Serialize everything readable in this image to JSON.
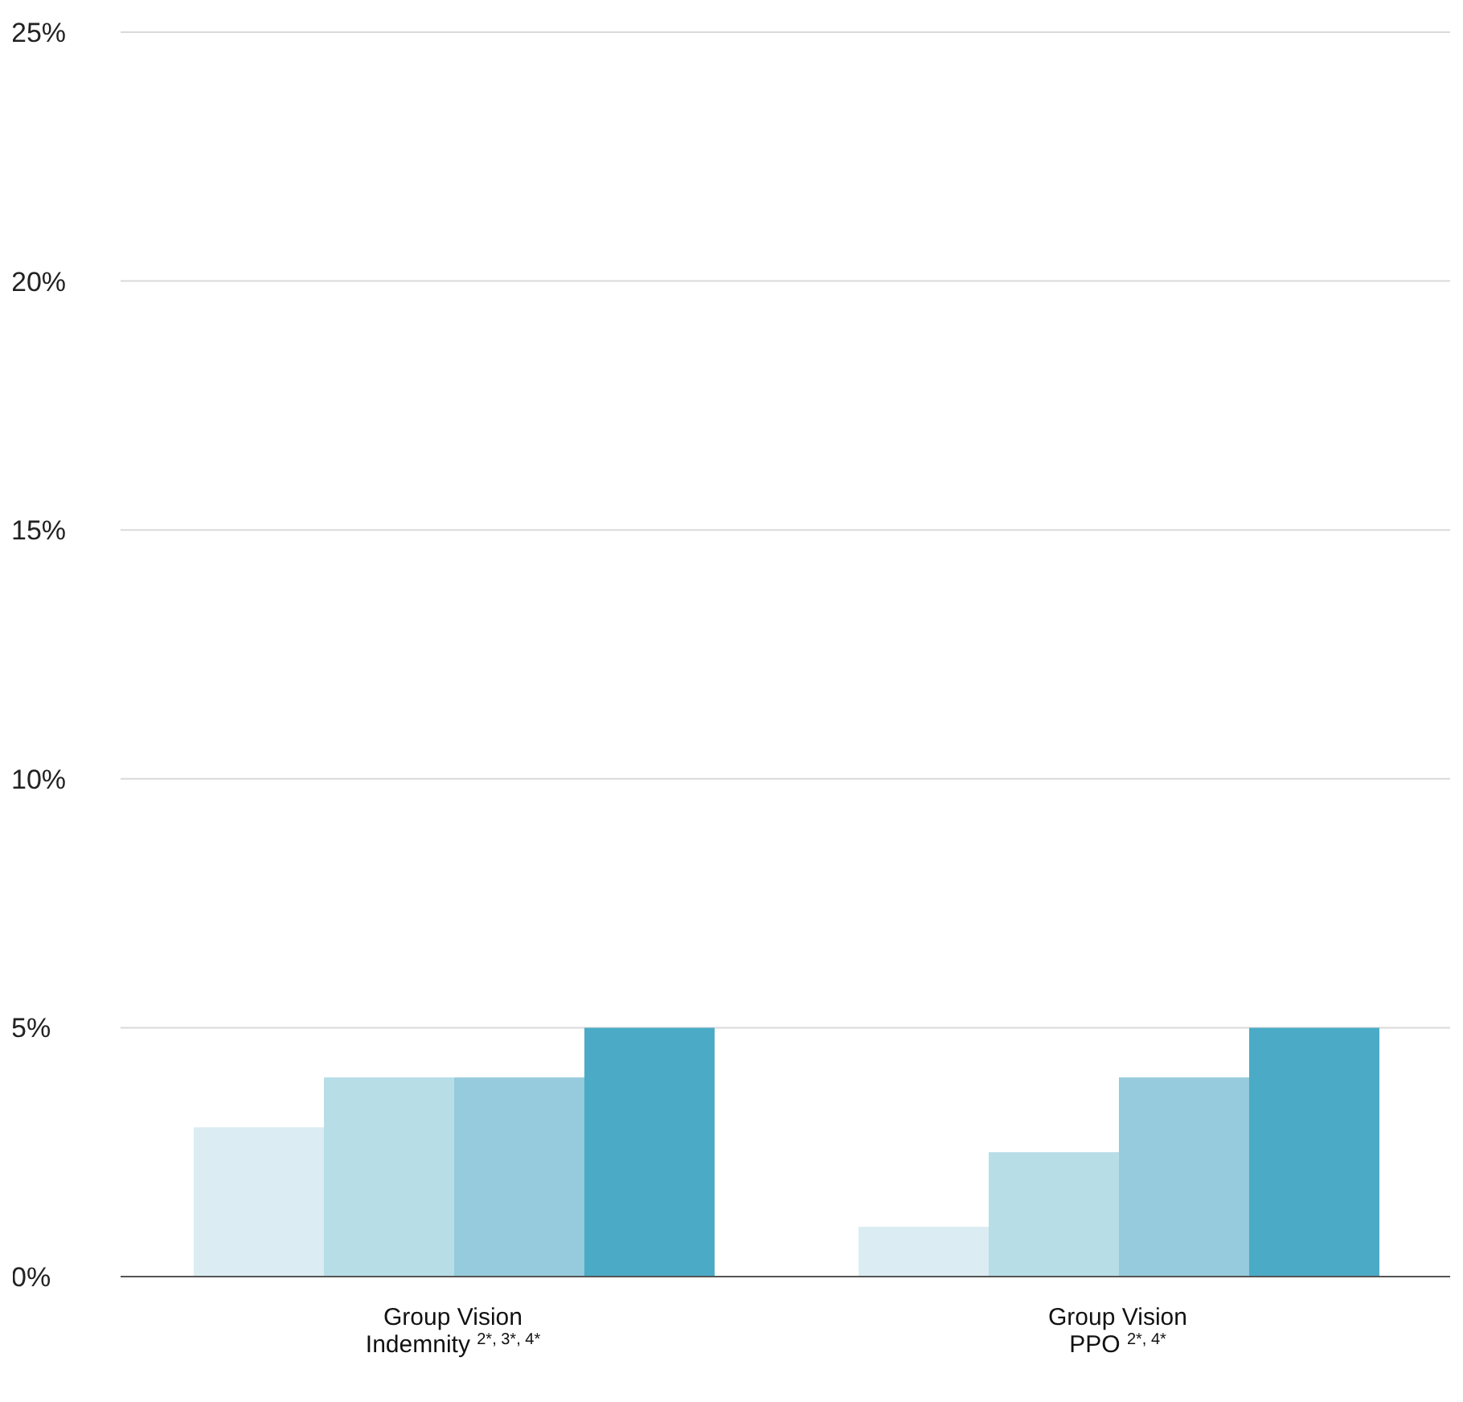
{
  "chart_data": {
    "type": "bar",
    "categories": [
      "Group Vision\nIndemnity $^{2*, 3*, 4*}$",
      "Group Vision\nPPO $^{2*, 4*}$"
    ],
    "series": [
      {
        "color": "#dbedf3",
        "values": [
          3,
          1
        ]
      },
      {
        "color": "#b7dde7",
        "values": [
          4,
          2.5
        ]
      },
      {
        "color": "#95cbdc",
        "values": [
          4,
          4
        ]
      },
      {
        "color": "#4babc6",
        "values": [
          5,
          5
        ]
      }
    ],
    "ylim": [
      0,
      25
    ],
    "yticks": [
      {
        "value": 0,
        "label": "0%"
      },
      {
        "value": 5,
        "label": "5%"
      },
      {
        "value": 10,
        "label": "10%"
      },
      {
        "value": 15,
        "label": "15%"
      },
      {
        "value": 20,
        "label": "20%"
      },
      {
        "value": 25,
        "label": "25%"
      }
    ],
    "grid": "y",
    "legend": false
  }
}
